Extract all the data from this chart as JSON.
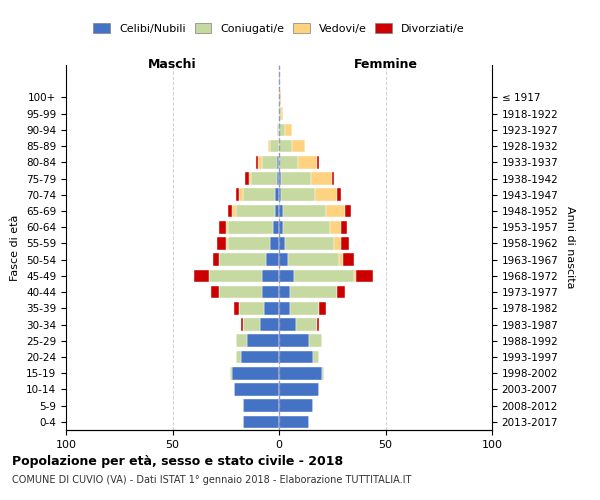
{
  "age_groups": [
    "0-4",
    "5-9",
    "10-14",
    "15-19",
    "20-24",
    "25-29",
    "30-34",
    "35-39",
    "40-44",
    "45-49",
    "50-54",
    "55-59",
    "60-64",
    "65-69",
    "70-74",
    "75-79",
    "80-84",
    "85-89",
    "90-94",
    "95-99",
    "100+"
  ],
  "birth_years": [
    "2013-2017",
    "2008-2012",
    "2003-2007",
    "1998-2002",
    "1993-1997",
    "1988-1992",
    "1983-1987",
    "1978-1982",
    "1973-1977",
    "1968-1972",
    "1963-1967",
    "1958-1962",
    "1953-1957",
    "1948-1952",
    "1943-1947",
    "1938-1942",
    "1933-1937",
    "1928-1932",
    "1923-1927",
    "1918-1922",
    "≤ 1917"
  ],
  "colors": {
    "celibi": "#4472C4",
    "coniugati": "#C6D9A0",
    "vedovi": "#FFD280",
    "divorziati": "#CC0000"
  },
  "maschi": {
    "celibi": [
      17,
      17,
      21,
      22,
      18,
      15,
      9,
      7,
      8,
      8,
      6,
      4,
      3,
      2,
      2,
      1,
      1,
      0,
      0,
      0,
      0
    ],
    "coniugati": [
      0,
      0,
      0,
      1,
      2,
      5,
      8,
      12,
      20,
      25,
      22,
      20,
      21,
      18,
      15,
      12,
      7,
      4,
      1,
      0,
      0
    ],
    "vedovi": [
      0,
      0,
      0,
      0,
      0,
      0,
      0,
      0,
      0,
      0,
      0,
      1,
      1,
      2,
      2,
      1,
      2,
      1,
      0,
      0,
      0
    ],
    "divorziati": [
      0,
      0,
      0,
      0,
      0,
      0,
      1,
      2,
      4,
      7,
      3,
      4,
      3,
      2,
      1,
      2,
      1,
      0,
      0,
      0,
      0
    ]
  },
  "femmine": {
    "nubili": [
      14,
      16,
      19,
      20,
      16,
      14,
      8,
      5,
      5,
      7,
      4,
      3,
      2,
      2,
      1,
      1,
      0,
      0,
      0,
      0,
      0
    ],
    "coniugate": [
      0,
      0,
      0,
      1,
      3,
      6,
      10,
      14,
      22,
      28,
      24,
      23,
      22,
      20,
      16,
      14,
      9,
      6,
      3,
      1,
      0
    ],
    "vedove": [
      0,
      0,
      0,
      0,
      0,
      0,
      0,
      0,
      0,
      1,
      2,
      3,
      5,
      9,
      10,
      10,
      9,
      6,
      3,
      1,
      1
    ],
    "divorziate": [
      0,
      0,
      0,
      0,
      0,
      0,
      1,
      3,
      4,
      8,
      5,
      4,
      3,
      3,
      2,
      1,
      1,
      0,
      0,
      0,
      0
    ]
  },
  "xlim": [
    -100,
    100
  ],
  "xticks": [
    -100,
    -50,
    0,
    50,
    100
  ],
  "xticklabels": [
    "100",
    "50",
    "0",
    "50",
    "100"
  ],
  "title": "Popolazione per età, sesso e stato civile - 2018",
  "subtitle": "COMUNE DI CUVIO (VA) - Dati ISTAT 1° gennaio 2018 - Elaborazione TUTTITALIA.IT",
  "ylabel_left": "Fasce di età",
  "ylabel_right": "Anni di nascita",
  "header_maschi": "Maschi",
  "header_femmine": "Femmine",
  "legend_labels": [
    "Celibi/Nubili",
    "Coniugati/e",
    "Vedovi/e",
    "Divorziati/e"
  ],
  "bg_color": "#ffffff",
  "grid_color": "#cccccc"
}
